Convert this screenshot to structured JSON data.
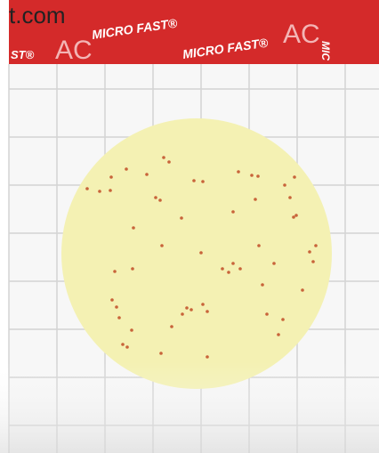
{
  "watermark": "t.com",
  "banner": {
    "labels": [
      "ST®",
      "AC",
      "MICRO FAST®",
      "MICRO FAST®",
      "AC",
      "MIC"
    ]
  }
}
